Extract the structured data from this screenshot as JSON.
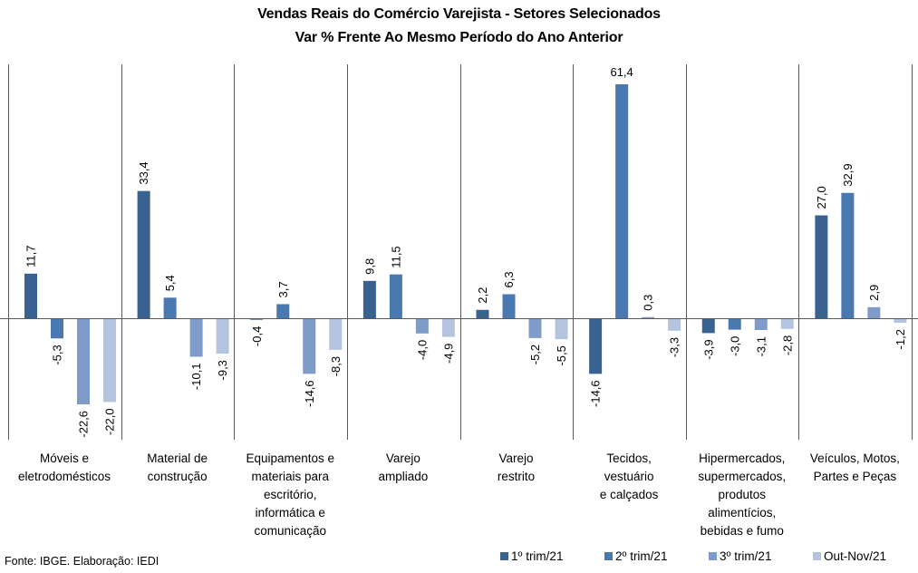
{
  "chart_data": {
    "type": "bar",
    "title": "Vendas Reais do Comércio Varejista - Setores Selecionados",
    "subtitle": "Var % Frente Ao Mesmo Período do Ano Anterior",
    "xlabel": "",
    "ylabel": "",
    "ylim": [
      -31.5,
      67
    ],
    "grid": false,
    "legend_position": "bottom-right",
    "categories": [
      "Móveis e\neletrodomésticos",
      "Material de\nconstrução",
      "Equipamentos e\nmateriais para\nescritório,\ninformática e\ncomunicação",
      "Varejo\nampliado",
      "Varejo\nrestrito",
      "Tecidos,\nvestuário\ne calçados",
      "Hipermercados,\nsupermercados,\nprodutos\nalimentícios,\nbebidas e fumo",
      "Veículos, Motos,\nPartes e Peças"
    ],
    "series": [
      {
        "name": "1º trim/21",
        "color": "#3a6291",
        "values": [
          11.7,
          33.4,
          -0.4,
          9.8,
          2.2,
          -14.6,
          -3.9,
          27.0
        ],
        "labels": [
          "11,7",
          "33,4",
          "-0,4",
          "9,8",
          "2,2",
          "-14,6",
          "-3,9",
          "27,0"
        ]
      },
      {
        "name": "2º trim/21",
        "color": "#4a78b0",
        "values": [
          -5.3,
          5.4,
          3.7,
          11.5,
          6.3,
          61.4,
          -3.0,
          32.9
        ],
        "labels": [
          "-5,3",
          "5,4",
          "3,7",
          "11,5",
          "6,3",
          "61,4",
          "-3,0",
          "32,9"
        ]
      },
      {
        "name": "3º trim/21",
        "color": "#7f9cc8",
        "values": [
          -22.6,
          -10.1,
          -14.6,
          -4.0,
          -5.2,
          0.3,
          -3.1,
          2.9
        ],
        "labels": [
          "-22,6",
          "-10,1",
          "-14,6",
          "-4,0",
          "-5,2",
          "0,3",
          "-3,1",
          "2,9"
        ]
      },
      {
        "name": "Out-Nov/21",
        "color": "#b5c4de",
        "values": [
          -22.0,
          -9.3,
          -8.3,
          -4.9,
          -5.5,
          -3.3,
          -2.8,
          -1.2
        ],
        "labels": [
          "-22,0",
          "-9,3",
          "-8,3",
          "-4,9",
          "-5,5",
          "-3,3",
          "-2,8",
          "-1,2"
        ]
      }
    ],
    "horizontal_labels": [
      "61,4"
    ],
    "source": "Fonte: IBGE. Elaboração: IEDI"
  }
}
